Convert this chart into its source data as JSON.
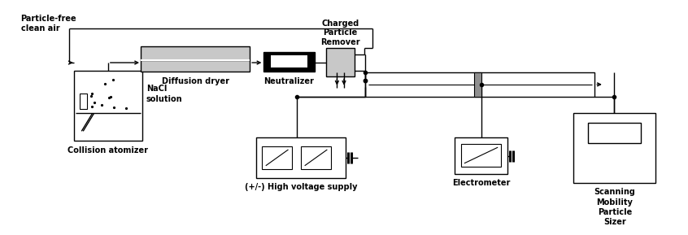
{
  "fig_width": 8.46,
  "fig_height": 2.89,
  "dpi": 100,
  "bg_color": "#ffffff",
  "line_color": "#000000",
  "gray_fill": "#c8c8c8",
  "dark_gray": "#909090",
  "labels": {
    "particle_free": "Particle-free\nclean air",
    "collision": "Collision atomizer",
    "nacl": "NaCl\nsolution",
    "diffusion": "Diffusion dryer",
    "neutralizer": "Neutralizer",
    "charged": "Charged\nParticle\nRemover",
    "hvs": "(+/-) High voltage supply",
    "electrometer": "Electrometer",
    "smps": "Scanning\nMobility\nParticle\nSizer"
  },
  "font_size": 7.0
}
